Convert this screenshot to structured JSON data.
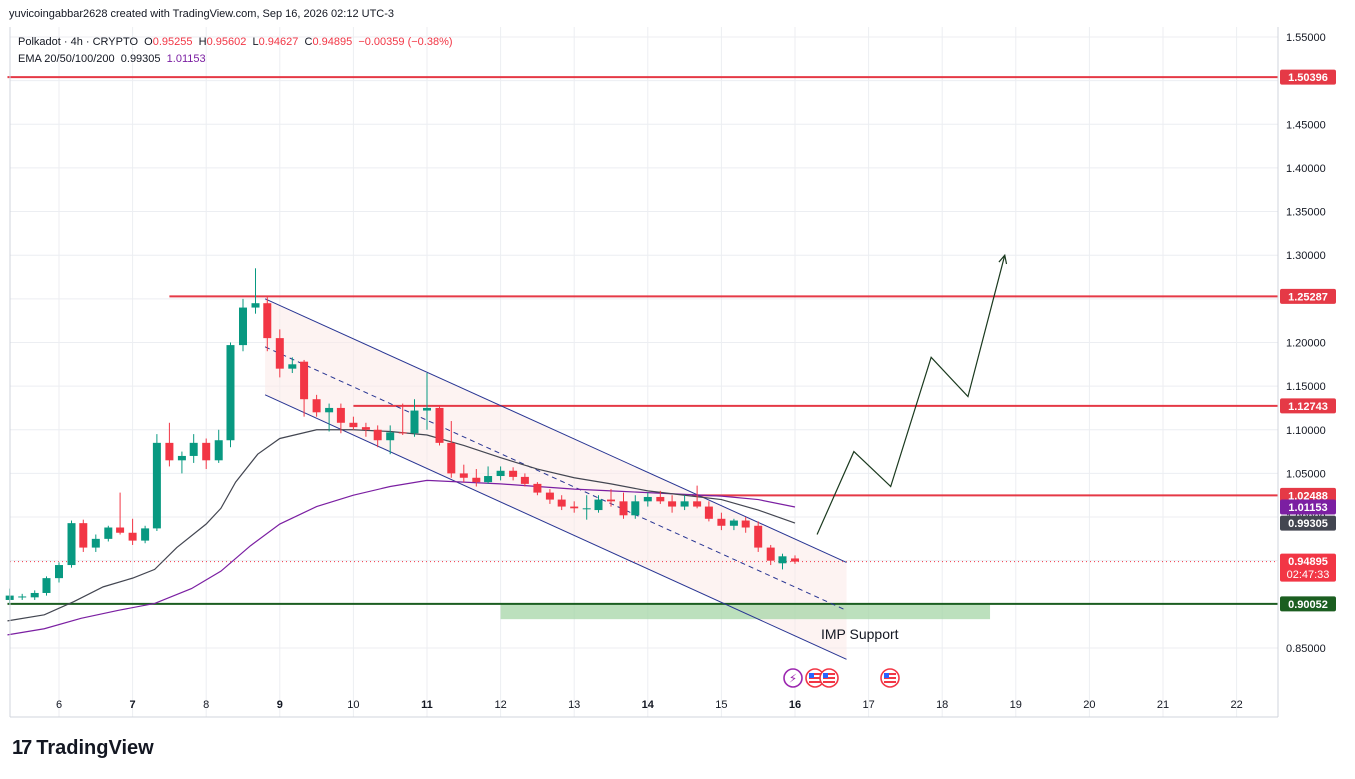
{
  "attribution": "yuvicoingabbar2628 created with TradingView.com, Sep 16, 2026 02:12 UTC-3",
  "legend": {
    "symbol": "Polkadot · 4h · CRYPTO",
    "o_label": "O",
    "o_value": "0.95255",
    "h_label": "H",
    "h_value": "0.95602",
    "l_label": "L",
    "l_value": "0.94627",
    "c_label": "C",
    "c_value": "0.94895",
    "change": "−0.00359 (−0.38%)",
    "ema_label": "EMA 20/50/100/200",
    "ema_value1": "0.99305",
    "ema_value2": "1.01153"
  },
  "annotation": "IMP Support",
  "brand": "TradingView",
  "colors": {
    "up": "#089981",
    "down": "#f23645",
    "level": "#e53946",
    "support": "#1b5e20",
    "channel": "#283593",
    "ema_short": "#434651",
    "ema_long": "#7b1fa2",
    "arrow": "#1b3a1f",
    "support_zone": "#a5d6a7"
  },
  "chart_data": {
    "type": "candlestick",
    "timeframe": "4h",
    "x_ticks": [
      "6",
      "7",
      "8",
      "9",
      "10",
      "11",
      "12",
      "13",
      "14",
      "15",
      "16",
      "17",
      "18",
      "19",
      "20",
      "21",
      "22"
    ],
    "y_ticks": [
      "1.55000",
      "1.50000",
      "1.45000",
      "1.40000",
      "1.35000",
      "1.30000",
      "1.25000",
      "1.20000",
      "1.15000",
      "1.10000",
      "1.05000",
      "1.00000",
      "0.95000",
      "0.90000",
      "0.85000"
    ],
    "ylim": [
      0.81,
      1.565
    ],
    "xlim": [
      5.3,
      22.5
    ],
    "candles": [
      {
        "t": 5.33,
        "o": 0.905,
        "h": 0.918,
        "l": 0.9,
        "c": 0.91
      },
      {
        "t": 5.5,
        "o": 0.908,
        "h": 0.912,
        "l": 0.905,
        "c": 0.909
      },
      {
        "t": 5.67,
        "o": 0.908,
        "h": 0.916,
        "l": 0.905,
        "c": 0.913
      },
      {
        "t": 5.83,
        "o": 0.913,
        "h": 0.932,
        "l": 0.91,
        "c": 0.93
      },
      {
        "t": 6.0,
        "o": 0.93,
        "h": 0.948,
        "l": 0.925,
        "c": 0.945
      },
      {
        "t": 6.17,
        "o": 0.945,
        "h": 0.996,
        "l": 0.942,
        "c": 0.993
      },
      {
        "t": 6.33,
        "o": 0.993,
        "h": 0.997,
        "l": 0.96,
        "c": 0.965
      },
      {
        "t": 6.5,
        "o": 0.965,
        "h": 0.98,
        "l": 0.96,
        "c": 0.975
      },
      {
        "t": 6.67,
        "o": 0.975,
        "h": 0.99,
        "l": 0.972,
        "c": 0.988
      },
      {
        "t": 6.83,
        "o": 0.988,
        "h": 1.028,
        "l": 0.98,
        "c": 0.982
      },
      {
        "t": 7.0,
        "o": 0.982,
        "h": 0.998,
        "l": 0.968,
        "c": 0.973
      },
      {
        "t": 7.17,
        "o": 0.973,
        "h": 0.99,
        "l": 0.97,
        "c": 0.987
      },
      {
        "t": 7.33,
        "o": 0.987,
        "h": 1.095,
        "l": 0.984,
        "c": 1.085
      },
      {
        "t": 7.5,
        "o": 1.085,
        "h": 1.108,
        "l": 1.058,
        "c": 1.065
      },
      {
        "t": 7.67,
        "o": 1.065,
        "h": 1.075,
        "l": 1.05,
        "c": 1.07
      },
      {
        "t": 7.83,
        "o": 1.07,
        "h": 1.095,
        "l": 1.062,
        "c": 1.085
      },
      {
        "t": 8.0,
        "o": 1.085,
        "h": 1.09,
        "l": 1.055,
        "c": 1.065
      },
      {
        "t": 8.17,
        "o": 1.065,
        "h": 1.1,
        "l": 1.062,
        "c": 1.088
      },
      {
        "t": 8.33,
        "o": 1.088,
        "h": 1.2,
        "l": 1.08,
        "c": 1.197
      },
      {
        "t": 8.5,
        "o": 1.197,
        "h": 1.25,
        "l": 1.19,
        "c": 1.24
      },
      {
        "t": 8.67,
        "o": 1.24,
        "h": 1.285,
        "l": 1.233,
        "c": 1.245
      },
      {
        "t": 8.83,
        "o": 1.245,
        "h": 1.252,
        "l": 1.19,
        "c": 1.205
      },
      {
        "t": 9.0,
        "o": 1.205,
        "h": 1.215,
        "l": 1.16,
        "c": 1.17
      },
      {
        "t": 9.17,
        "o": 1.17,
        "h": 1.183,
        "l": 1.165,
        "c": 1.175
      },
      {
        "t": 9.33,
        "o": 1.178,
        "h": 1.18,
        "l": 1.115,
        "c": 1.135
      },
      {
        "t": 9.5,
        "o": 1.135,
        "h": 1.14,
        "l": 1.115,
        "c": 1.12
      },
      {
        "t": 9.67,
        "o": 1.12,
        "h": 1.13,
        "l": 1.098,
        "c": 1.125
      },
      {
        "t": 9.83,
        "o": 1.125,
        "h": 1.13,
        "l": 1.096,
        "c": 1.108
      },
      {
        "t": 10.0,
        "o": 1.108,
        "h": 1.115,
        "l": 1.1,
        "c": 1.103
      },
      {
        "t": 10.17,
        "o": 1.103,
        "h": 1.108,
        "l": 1.092,
        "c": 1.1
      },
      {
        "t": 10.33,
        "o": 1.1,
        "h": 1.105,
        "l": 1.08,
        "c": 1.088
      },
      {
        "t": 10.5,
        "o": 1.088,
        "h": 1.105,
        "l": 1.072,
        "c": 1.097
      },
      {
        "t": 10.67,
        "o": 1.097,
        "h": 1.13,
        "l": 1.094,
        "c": 1.096
      },
      {
        "t": 10.83,
        "o": 1.096,
        "h": 1.135,
        "l": 1.092,
        "c": 1.122
      },
      {
        "t": 11.0,
        "o": 1.122,
        "h": 1.165,
        "l": 1.1,
        "c": 1.125
      },
      {
        "t": 11.17,
        "o": 1.125,
        "h": 1.128,
        "l": 1.082,
        "c": 1.085
      },
      {
        "t": 11.33,
        "o": 1.085,
        "h": 1.11,
        "l": 1.045,
        "c": 1.05
      },
      {
        "t": 11.5,
        "o": 1.05,
        "h": 1.06,
        "l": 1.04,
        "c": 1.045
      },
      {
        "t": 11.67,
        "o": 1.045,
        "h": 1.055,
        "l": 1.035,
        "c": 1.04
      },
      {
        "t": 11.83,
        "o": 1.04,
        "h": 1.058,
        "l": 1.038,
        "c": 1.047
      },
      {
        "t": 12.0,
        "o": 1.047,
        "h": 1.058,
        "l": 1.042,
        "c": 1.053
      },
      {
        "t": 12.17,
        "o": 1.053,
        "h": 1.057,
        "l": 1.042,
        "c": 1.046
      },
      {
        "t": 12.33,
        "o": 1.046,
        "h": 1.05,
        "l": 1.035,
        "c": 1.038
      },
      {
        "t": 12.5,
        "o": 1.038,
        "h": 1.04,
        "l": 1.025,
        "c": 1.028
      },
      {
        "t": 12.67,
        "o": 1.028,
        "h": 1.032,
        "l": 1.015,
        "c": 1.02
      },
      {
        "t": 12.83,
        "o": 1.02,
        "h": 1.025,
        "l": 1.008,
        "c": 1.012
      },
      {
        "t": 13.0,
        "o": 1.012,
        "h": 1.018,
        "l": 1.005,
        "c": 1.01
      },
      {
        "t": 13.17,
        "o": 1.01,
        "h": 1.025,
        "l": 0.997,
        "c": 1.01
      },
      {
        "t": 13.33,
        "o": 1.008,
        "h": 1.025,
        "l": 1.005,
        "c": 1.02
      },
      {
        "t": 13.5,
        "o": 1.02,
        "h": 1.032,
        "l": 1.012,
        "c": 1.018
      },
      {
        "t": 13.67,
        "o": 1.018,
        "h": 1.028,
        "l": 0.998,
        "c": 1.002
      },
      {
        "t": 13.83,
        "o": 1.002,
        "h": 1.025,
        "l": 0.998,
        "c": 1.018
      },
      {
        "t": 14.0,
        "o": 1.018,
        "h": 1.028,
        "l": 1.012,
        "c": 1.023
      },
      {
        "t": 14.17,
        "o": 1.023,
        "h": 1.03,
        "l": 1.015,
        "c": 1.018
      },
      {
        "t": 14.33,
        "o": 1.018,
        "h": 1.025,
        "l": 1.005,
        "c": 1.012
      },
      {
        "t": 14.5,
        "o": 1.012,
        "h": 1.025,
        "l": 1.008,
        "c": 1.018
      },
      {
        "t": 14.67,
        "o": 1.018,
        "h": 1.036,
        "l": 1.01,
        "c": 1.012
      },
      {
        "t": 14.83,
        "o": 1.012,
        "h": 1.018,
        "l": 0.995,
        "c": 0.998
      },
      {
        "t": 15.0,
        "o": 0.998,
        "h": 1.005,
        "l": 0.985,
        "c": 0.99
      },
      {
        "t": 15.17,
        "o": 0.99,
        "h": 0.998,
        "l": 0.985,
        "c": 0.996
      },
      {
        "t": 15.33,
        "o": 0.996,
        "h": 1.0,
        "l": 0.982,
        "c": 0.988
      },
      {
        "t": 15.5,
        "o": 0.99,
        "h": 0.995,
        "l": 0.96,
        "c": 0.965
      },
      {
        "t": 15.67,
        "o": 0.965,
        "h": 0.968,
        "l": 0.945,
        "c": 0.95
      },
      {
        "t": 15.83,
        "o": 0.947,
        "h": 0.958,
        "l": 0.94,
        "c": 0.955
      },
      {
        "t": 16.0,
        "o": 0.95255,
        "h": 0.95602,
        "l": 0.94627,
        "c": 0.94895
      }
    ],
    "ema_short": [
      [
        5.3,
        0.881
      ],
      [
        5.8,
        0.888
      ],
      [
        6.2,
        0.903
      ],
      [
        6.6,
        0.92
      ],
      [
        7.0,
        0.93
      ],
      [
        7.3,
        0.94
      ],
      [
        7.6,
        0.965
      ],
      [
        8.0,
        0.992
      ],
      [
        8.2,
        1.01
      ],
      [
        8.4,
        1.04
      ],
      [
        8.7,
        1.072
      ],
      [
        9.0,
        1.09
      ],
      [
        9.5,
        1.1
      ],
      [
        10.0,
        1.1
      ],
      [
        10.5,
        1.098
      ],
      [
        11.0,
        1.094
      ],
      [
        11.5,
        1.082
      ],
      [
        12.0,
        1.068
      ],
      [
        12.5,
        1.055
      ],
      [
        13.0,
        1.045
      ],
      [
        13.5,
        1.038
      ],
      [
        14.0,
        1.03
      ],
      [
        14.5,
        1.025
      ],
      [
        15.0,
        1.02
      ],
      [
        15.5,
        1.008
      ],
      [
        16.0,
        0.99305
      ]
    ],
    "ema_long": [
      [
        5.3,
        0.865
      ],
      [
        5.8,
        0.872
      ],
      [
        6.3,
        0.884
      ],
      [
        6.8,
        0.893
      ],
      [
        7.3,
        0.901
      ],
      [
        7.8,
        0.918
      ],
      [
        8.2,
        0.938
      ],
      [
        8.6,
        0.967
      ],
      [
        9.0,
        0.992
      ],
      [
        9.5,
        1.012
      ],
      [
        10.0,
        1.025
      ],
      [
        10.5,
        1.035
      ],
      [
        11.0,
        1.042
      ],
      [
        11.5,
        1.04
      ],
      [
        12.0,
        1.038
      ],
      [
        12.5,
        1.035
      ],
      [
        13.0,
        1.032
      ],
      [
        13.5,
        1.03
      ],
      [
        14.0,
        1.028
      ],
      [
        14.5,
        1.026
      ],
      [
        15.0,
        1.024
      ],
      [
        15.5,
        1.02
      ],
      [
        16.0,
        1.01153
      ]
    ],
    "levels": [
      {
        "price": 1.50396,
        "label": "1.50396",
        "from": 5.3,
        "color": "#e53946"
      },
      {
        "price": 1.25287,
        "label": "1.25287",
        "from": 7.5,
        "color": "#e53946"
      },
      {
        "price": 1.12743,
        "label": "1.12743",
        "from": 10.0,
        "color": "#e53946"
      },
      {
        "price": 1.02488,
        "label": "1.02488",
        "from": 14.6,
        "color": "#e53946"
      },
      {
        "price": 0.90052,
        "label": "0.90052",
        "from": 5.3,
        "color": "#1b5e20"
      }
    ],
    "price_tags": [
      {
        "price": 1.01153,
        "label": "1.01153",
        "bg": "#7b1fa2"
      },
      {
        "price": 0.99305,
        "label": "0.99305",
        "bg": "#434651"
      },
      {
        "price": 0.94895,
        "label": "0.94895",
        "sub": "02:47:33",
        "bg": "#f23645"
      }
    ],
    "channel": {
      "upper": [
        [
          8.8,
          1.25
        ],
        [
          16.7,
          0.948
        ]
      ],
      "middle": [
        [
          8.8,
          1.195
        ],
        [
          16.7,
          0.893
        ]
      ],
      "lower": [
        [
          8.8,
          1.14
        ],
        [
          16.7,
          0.837
        ]
      ]
    },
    "support_zone": {
      "x1": 12.0,
      "x2": 18.65,
      "y1": 0.883,
      "y2": 0.9
    },
    "projection": [
      [
        16.3,
        0.98
      ],
      [
        16.8,
        1.075
      ],
      [
        17.3,
        1.035
      ],
      [
        17.85,
        1.183
      ],
      [
        18.35,
        1.138
      ],
      [
        18.85,
        1.3
      ]
    ]
  }
}
